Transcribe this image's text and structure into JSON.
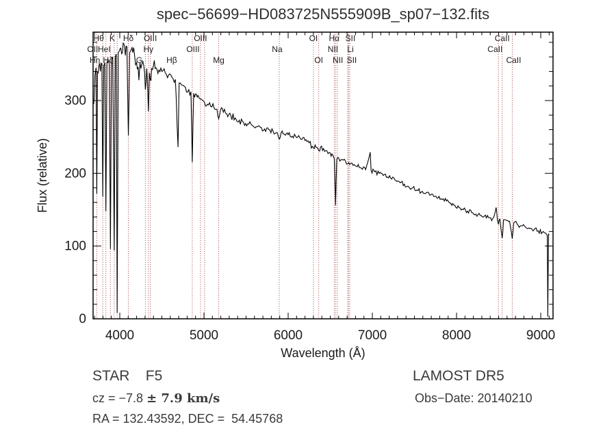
{
  "title": "spec−56699−HD083725N555909B_sp07−132.fits",
  "annotations": {
    "star_class": "STAR    F5",
    "cz_prefix": "cz = −7.8 ",
    "cz_serif": "± 7.9 km/s",
    "ra_dec": "RA = 132.43592, DEC =  54.45768",
    "survey": "LAMOST DR5",
    "obs_date": "Obs−Date: 20140210"
  },
  "chart_data": {
    "type": "line",
    "title": "spec−56699−HD083725N555909B_sp07−132.fits",
    "xlabel": "Wavelength (Å)",
    "ylabel": "Flux (relative)",
    "xlim": [
      3683,
      9146
    ],
    "ylim": [
      0,
      394
    ],
    "xticks": [
      4000,
      5000,
      6000,
      7000,
      8000,
      9000
    ],
    "yticks": [
      0,
      100,
      200,
      300
    ],
    "xminor_step": 100,
    "yminor_step": 20,
    "grid": false,
    "line_color": "#000000",
    "marker_color": "#a13c3c",
    "text_color": "#1a1a1a",
    "line_markers": [
      {
        "label": "Hθ",
        "wl": 3798,
        "row": 1,
        "dx": -6
      },
      {
        "label": "K",
        "wl": 3934,
        "row": 1,
        "dx": -3
      },
      {
        "label": "Hδ",
        "wl": 4102,
        "row": 1,
        "dx": 0
      },
      {
        "label": "OIII",
        "wl": 4363,
        "row": 1,
        "dx": 0
      },
      {
        "label": "OIII",
        "wl": 5007,
        "row": 1,
        "dx": -6
      },
      {
        "label": "OI",
        "wl": 6300,
        "row": 1,
        "dx": 0
      },
      {
        "label": "Hα",
        "wl": 6563,
        "row": 1,
        "dx": -2
      },
      {
        "label": "SII",
        "wl": 6722,
        "row": 1,
        "dx": 2
      },
      {
        "label": "CaII",
        "wl": 8542,
        "row": 1,
        "dx": 0
      },
      {
        "label": "OII",
        "wl": 3727,
        "row": 2,
        "dx": -6
      },
      {
        "label": "HeI",
        "wl": 3889,
        "row": 2,
        "dx": -9
      },
      {
        "label": "Hγ",
        "wl": 4340,
        "row": 2,
        "dx": 0
      },
      {
        "label": "OIII",
        "wl": 4959,
        "row": 2,
        "dx": -11
      },
      {
        "label": "Na",
        "wl": 5894,
        "row": 2,
        "dx": -3
      },
      {
        "label": "NII",
        "wl": 6548,
        "row": 2,
        "dx": -2
      },
      {
        "label": "Li",
        "wl": 6708,
        "row": 2,
        "dx": 4
      },
      {
        "label": "CaII",
        "wl": 8498,
        "row": 2,
        "dx": -5
      },
      {
        "label": "Hη",
        "wl": 3835,
        "row": 3,
        "dx": -16
      },
      {
        "label": "Hζ",
        "wl": 3889,
        "row": 3,
        "dx": -4
      },
      {
        "label": "G",
        "wl": 4304,
        "row": 3,
        "dx": -9
      },
      {
        "label": "Hβ",
        "wl": 4861,
        "row": 3,
        "dx": -30
      },
      {
        "label": "Mg",
        "wl": 5175,
        "row": 3,
        "dx": 0
      },
      {
        "label": "OI",
        "wl": 6363,
        "row": 3,
        "dx": 0
      },
      {
        "label": "NII",
        "wl": 6583,
        "row": 3,
        "dx": 1
      },
      {
        "label": "SII",
        "wl": 6731,
        "row": 3,
        "dx": 3
      },
      {
        "label": "CaII",
        "wl": 8662,
        "row": 3,
        "dx": 2
      }
    ],
    "marker_wavelengths": [
      3727,
      3798,
      3835,
      3889,
      3934,
      3969,
      4102,
      4304,
      4340,
      4363,
      4861,
      4959,
      5007,
      5175,
      5894,
      6300,
      6363,
      6548,
      6563,
      6583,
      6708,
      6716,
      6731,
      8498,
      8542,
      8662
    ],
    "spectrum_anchors": [
      [
        3690,
        295
      ],
      [
        3705,
        335
      ],
      [
        3718,
        345
      ],
      [
        3727,
        172
      ],
      [
        3736,
        340
      ],
      [
        3752,
        348
      ],
      [
        3770,
        340
      ],
      [
        3788,
        350
      ],
      [
        3798,
        168
      ],
      [
        3810,
        348
      ],
      [
        3822,
        352
      ],
      [
        3835,
        148
      ],
      [
        3848,
        352
      ],
      [
        3862,
        356
      ],
      [
        3875,
        350
      ],
      [
        3889,
        96
      ],
      [
        3902,
        356
      ],
      [
        3916,
        360
      ],
      [
        3934,
        94
      ],
      [
        3946,
        360
      ],
      [
        3958,
        364
      ],
      [
        3969,
        8
      ],
      [
        3982,
        366
      ],
      [
        3995,
        368
      ],
      [
        4012,
        372
      ],
      [
        4032,
        366
      ],
      [
        4048,
        378
      ],
      [
        4066,
        362
      ],
      [
        4085,
        374
      ],
      [
        4102,
        252
      ],
      [
        4118,
        366
      ],
      [
        4136,
        370
      ],
      [
        4155,
        366
      ],
      [
        4176,
        362
      ],
      [
        4200,
        352
      ],
      [
        4218,
        346
      ],
      [
        4227,
        328
      ],
      [
        4240,
        352
      ],
      [
        4262,
        350
      ],
      [
        4285,
        348
      ],
      [
        4304,
        315
      ],
      [
        4320,
        344
      ],
      [
        4340,
        285
      ],
      [
        4352,
        338
      ],
      [
        4363,
        328
      ],
      [
        4378,
        344
      ],
      [
        4400,
        348
      ],
      [
        4430,
        345
      ],
      [
        4465,
        342
      ],
      [
        4500,
        340
      ],
      [
        4540,
        338
      ],
      [
        4580,
        335
      ],
      [
        4620,
        332
      ],
      [
        4660,
        329
      ],
      [
        4692,
        236
      ],
      [
        4705,
        324
      ],
      [
        4740,
        321
      ],
      [
        4780,
        318
      ],
      [
        4820,
        315
      ],
      [
        4845,
        312
      ],
      [
        4861,
        215
      ],
      [
        4878,
        310
      ],
      [
        4900,
        309
      ],
      [
        4930,
        307
      ],
      [
        4959,
        302
      ],
      [
        4985,
        300
      ],
      [
        5007,
        297
      ],
      [
        5040,
        295
      ],
      [
        5080,
        292
      ],
      [
        5120,
        290
      ],
      [
        5155,
        288
      ],
      [
        5175,
        275
      ],
      [
        5195,
        286
      ],
      [
        5230,
        284
      ],
      [
        5270,
        282
      ],
      [
        5320,
        279
      ],
      [
        5370,
        276
      ],
      [
        5420,
        273
      ],
      [
        5470,
        270
      ],
      [
        5520,
        268
      ],
      [
        5570,
        266
      ],
      [
        5620,
        264
      ],
      [
        5670,
        263
      ],
      [
        5720,
        261
      ],
      [
        5770,
        260
      ],
      [
        5820,
        258
      ],
      [
        5860,
        256
      ],
      [
        5894,
        247
      ],
      [
        5915,
        255
      ],
      [
        5955,
        254
      ],
      [
        6000,
        253
      ],
      [
        6050,
        251
      ],
      [
        6100,
        249
      ],
      [
        6150,
        247
      ],
      [
        6200,
        245
      ],
      [
        6250,
        242
      ],
      [
        6300,
        235
      ],
      [
        6320,
        239
      ],
      [
        6363,
        231
      ],
      [
        6385,
        236
      ],
      [
        6420,
        234
      ],
      [
        6460,
        231
      ],
      [
        6500,
        228
      ],
      [
        6530,
        225
      ],
      [
        6548,
        220
      ],
      [
        6563,
        156
      ],
      [
        6578,
        219
      ],
      [
        6600,
        221
      ],
      [
        6640,
        219
      ],
      [
        6680,
        217
      ],
      [
        6708,
        213
      ],
      [
        6731,
        212
      ],
      [
        6770,
        211
      ],
      [
        6820,
        209
      ],
      [
        6870,
        207
      ],
      [
        6920,
        205
      ],
      [
        6975,
        229
      ],
      [
        6985,
        204
      ],
      [
        7030,
        202
      ],
      [
        7080,
        200
      ],
      [
        7130,
        197
      ],
      [
        7180,
        195
      ],
      [
        7230,
        192
      ],
      [
        7280,
        190
      ],
      [
        7330,
        187
      ],
      [
        7380,
        185
      ],
      [
        7430,
        182
      ],
      [
        7480,
        180
      ],
      [
        7530,
        177
      ],
      [
        7580,
        174
      ],
      [
        7630,
        172
      ],
      [
        7680,
        170
      ],
      [
        7730,
        168
      ],
      [
        7780,
        166
      ],
      [
        7830,
        164
      ],
      [
        7880,
        162
      ],
      [
        7930,
        159
      ],
      [
        7980,
        156
      ],
      [
        8030,
        153
      ],
      [
        8080,
        150
      ],
      [
        8130,
        148
      ],
      [
        8180,
        146
      ],
      [
        8230,
        144
      ],
      [
        8280,
        142
      ],
      [
        8330,
        141
      ],
      [
        8380,
        139
      ],
      [
        8430,
        138
      ],
      [
        8470,
        153
      ],
      [
        8485,
        136
      ],
      [
        8498,
        130
      ],
      [
        8515,
        137
      ],
      [
        8542,
        111
      ],
      [
        8558,
        136
      ],
      [
        8600,
        135
      ],
      [
        8630,
        134
      ],
      [
        8662,
        110
      ],
      [
        8680,
        132
      ],
      [
        8720,
        130
      ],
      [
        8770,
        128
      ],
      [
        8820,
        126
      ],
      [
        8870,
        124
      ],
      [
        8920,
        122
      ],
      [
        8970,
        121
      ],
      [
        9020,
        119
      ],
      [
        9055,
        118
      ],
      [
        9070,
        116
      ],
      [
        9078,
        114
      ],
      [
        9084,
        3
      ],
      [
        9092,
        117
      ],
      [
        9100,
        115
      ]
    ],
    "noise_regions": [
      [
        3690,
        4000,
        14
      ],
      [
        4000,
        4450,
        9
      ],
      [
        4450,
        5050,
        6
      ],
      [
        5050,
        5700,
        5
      ],
      [
        5700,
        6350,
        4
      ],
      [
        6350,
        7000,
        4
      ],
      [
        7000,
        7700,
        3.5
      ],
      [
        7700,
        8400,
        3
      ],
      [
        8400,
        9100,
        3.5
      ]
    ]
  }
}
